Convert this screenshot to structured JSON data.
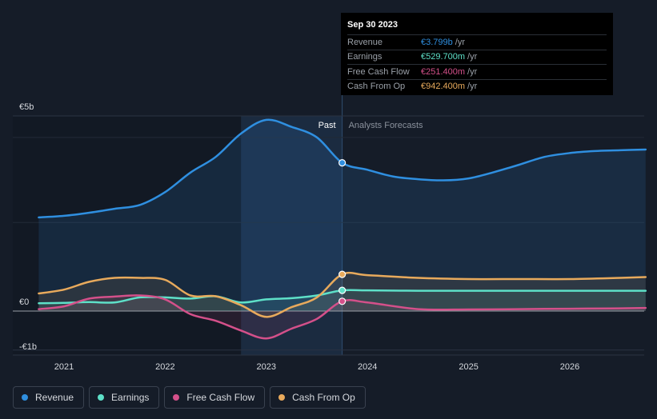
{
  "colors": {
    "revenue": "#2f8fe0",
    "earnings": "#5ee0c8",
    "fcf": "#d4508a",
    "cfo": "#e8aa5c",
    "background": "#151c28",
    "past_shade": "#1b2b40",
    "grid": "#2b3342"
  },
  "chart_data": {
    "type": "line",
    "title": "",
    "xlabel": "",
    "ylabel": "",
    "x_ticks": [
      "2021",
      "2022",
      "2023",
      "2024",
      "2025",
      "2026"
    ],
    "x_tick_values": [
      2021,
      2022,
      2023,
      2024,
      2025,
      2026
    ],
    "x_range": [
      2020.5,
      2026.75
    ],
    "ylim": [
      -1.2,
      5.3
    ],
    "y_ticks": [
      {
        "value": 5,
        "label": "€5b"
      },
      {
        "value": 0,
        "label": "€0"
      },
      {
        "value": -1,
        "label": "-€1b"
      }
    ],
    "divider_x": 2023.75,
    "past_shade_start": 2022.75,
    "past_label": "Past",
    "forecast_label": "Analysts Forecasts",
    "series": [
      {
        "name": "Revenue",
        "key": "revenue",
        "x": [
          2020.75,
          2021.0,
          2021.25,
          2021.5,
          2021.75,
          2022.0,
          2022.25,
          2022.5,
          2022.75,
          2023.0,
          2023.25,
          2023.5,
          2023.75,
          2024.0,
          2024.25,
          2024.5,
          2024.75,
          2025.0,
          2025.25,
          2025.5,
          2025.75,
          2026.0,
          2026.25,
          2026.5,
          2026.75
        ],
        "values": [
          2.4,
          2.44,
          2.52,
          2.62,
          2.72,
          3.05,
          3.55,
          3.95,
          4.55,
          4.9,
          4.72,
          4.45,
          3.8,
          3.62,
          3.45,
          3.38,
          3.35,
          3.4,
          3.56,
          3.75,
          3.95,
          4.05,
          4.1,
          4.12,
          4.14
        ]
      },
      {
        "name": "Earnings",
        "key": "earnings",
        "x": [
          2020.75,
          2021.0,
          2021.25,
          2021.5,
          2021.75,
          2022.0,
          2022.25,
          2022.5,
          2022.75,
          2023.0,
          2023.25,
          2023.5,
          2023.75,
          2024.0,
          2024.5,
          2025.0,
          2025.5,
          2026.0,
          2026.5,
          2026.75
        ],
        "values": [
          0.2,
          0.21,
          0.23,
          0.22,
          0.35,
          0.35,
          0.32,
          0.38,
          0.22,
          0.3,
          0.33,
          0.4,
          0.53,
          0.53,
          0.52,
          0.52,
          0.52,
          0.52,
          0.52,
          0.52
        ]
      },
      {
        "name": "Free Cash Flow",
        "key": "fcf",
        "x": [
          2020.75,
          2021.0,
          2021.25,
          2021.5,
          2021.75,
          2022.0,
          2022.25,
          2022.5,
          2022.75,
          2023.0,
          2023.25,
          2023.5,
          2023.75,
          2024.0,
          2024.5,
          2025.0,
          2025.5,
          2026.0,
          2026.5,
          2026.75
        ],
        "values": [
          0.05,
          0.12,
          0.32,
          0.37,
          0.4,
          0.3,
          -0.08,
          -0.25,
          -0.5,
          -0.7,
          -0.45,
          -0.2,
          0.25,
          0.22,
          0.05,
          0.04,
          0.05,
          0.06,
          0.07,
          0.08
        ]
      },
      {
        "name": "Cash From Op",
        "key": "cfo",
        "x": [
          2020.75,
          2021.0,
          2021.25,
          2021.5,
          2021.75,
          2022.0,
          2022.25,
          2022.5,
          2022.75,
          2023.0,
          2023.25,
          2023.5,
          2023.75,
          2024.0,
          2024.5,
          2025.0,
          2025.5,
          2026.0,
          2026.5,
          2026.75
        ],
        "values": [
          0.45,
          0.55,
          0.75,
          0.85,
          0.85,
          0.8,
          0.4,
          0.38,
          0.15,
          -0.15,
          0.1,
          0.35,
          0.94,
          0.92,
          0.85,
          0.82,
          0.82,
          0.82,
          0.85,
          0.87
        ]
      }
    ]
  },
  "tooltip": {
    "date": "Sep 30 2023",
    "rows": [
      {
        "label": "Revenue",
        "value": "€3.799b",
        "unit": "/yr",
        "color": "#2f8fe0"
      },
      {
        "label": "Earnings",
        "value": "€529.700m",
        "unit": "/yr",
        "color": "#5ee0c8"
      },
      {
        "label": "Free Cash Flow",
        "value": "€251.400m",
        "unit": "/yr",
        "color": "#d4508a"
      },
      {
        "label": "Cash From Op",
        "value": "€942.400m",
        "unit": "/yr",
        "color": "#e8aa5c"
      }
    ]
  },
  "legend": [
    {
      "label": "Revenue",
      "color": "#2f8fe0"
    },
    {
      "label": "Earnings",
      "color": "#5ee0c8"
    },
    {
      "label": "Free Cash Flow",
      "color": "#d4508a"
    },
    {
      "label": "Cash From Op",
      "color": "#e8aa5c"
    }
  ]
}
